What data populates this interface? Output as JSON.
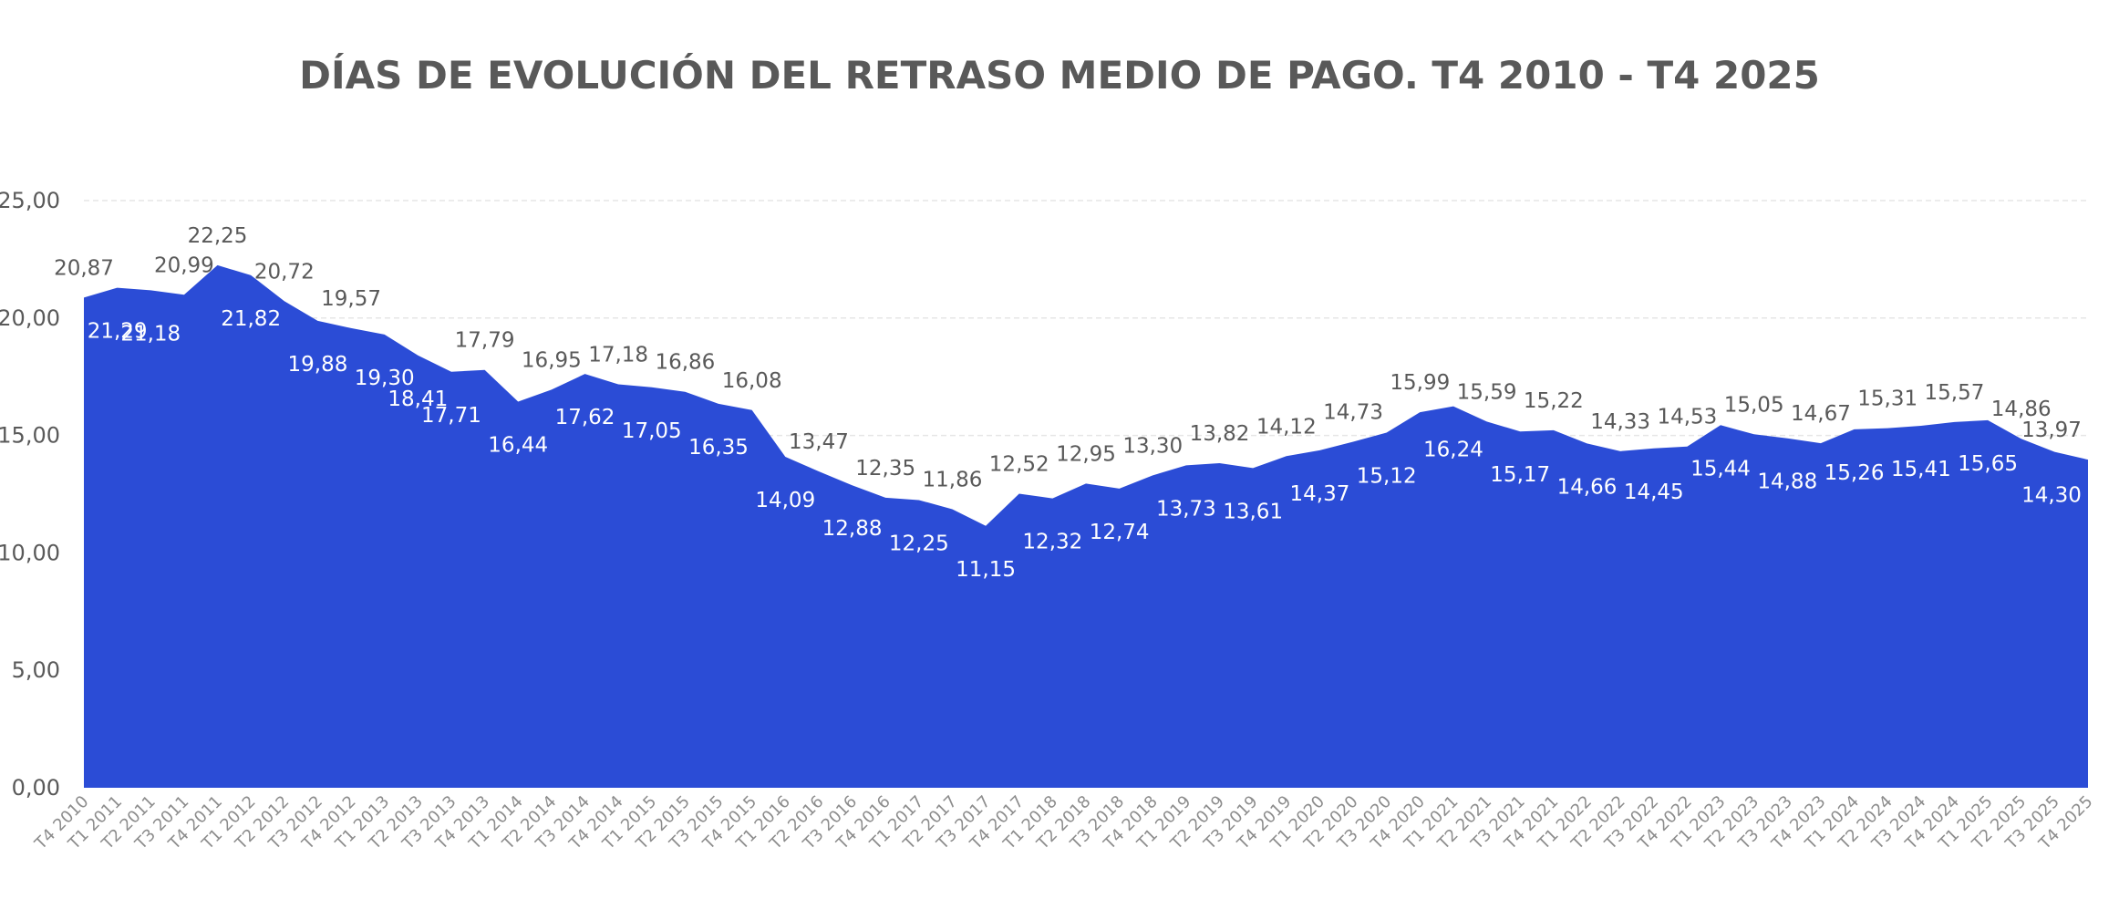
{
  "chart_data": {
    "type": "area",
    "title": "DÍAS DE EVOLUCIÓN DEL RETRASO MEDIO DE PAGO. T4 2010 - T4 2025",
    "xlabel": "",
    "ylabel": "",
    "ylim": [
      0,
      25
    ],
    "yticks": [
      "0,00",
      "5,00",
      "10,00",
      "15,00",
      "20,00",
      "25,00"
    ],
    "grid": true,
    "legend": "none",
    "colors": {
      "area": "#2b4cd6",
      "label_above": "#595959",
      "label_inside": "#ffffff",
      "title": "#595959"
    },
    "categories": [
      "T4 2010",
      "T1 2011",
      "T2 2011",
      "T3 2011",
      "T4 2011",
      "T1 2012",
      "T2 2012",
      "T3 2012",
      "T4 2012",
      "T1 2013",
      "T2 2013",
      "T3 2013",
      "T4 2013",
      "T1 2014",
      "T2 2014",
      "T3 2014",
      "T4 2014",
      "T1 2015",
      "T2 2015",
      "T3 2015",
      "T4 2015",
      "T1 2016",
      "T2 2016",
      "T3 2016",
      "T4 2016",
      "T1 2017",
      "T2 2017",
      "T3 2017",
      "T4 2017",
      "T1 2018",
      "T2 2018",
      "T3 2018",
      "T4 2018",
      "T1 2019",
      "T2 2019",
      "T3 2019",
      "T4 2019",
      "T1 2020",
      "T2 2020",
      "T3 2020",
      "T4 2020",
      "T1 2021",
      "T2 2021",
      "T3 2021",
      "T4 2021",
      "T1 2022",
      "T2 2022",
      "T3 2022",
      "T4 2022",
      "T1 2023",
      "T2 2023",
      "T3 2023",
      "T4 2023",
      "T1 2024",
      "T2 2024",
      "T3 2024",
      "T4 2024",
      "T1 2025",
      "T2 2025",
      "T3 2025",
      "T4 2025"
    ],
    "values": [
      20.87,
      21.29,
      21.18,
      20.99,
      22.25,
      21.82,
      20.72,
      19.88,
      19.57,
      19.3,
      18.41,
      17.71,
      17.79,
      16.44,
      16.95,
      17.62,
      17.18,
      17.05,
      16.86,
      16.35,
      16.08,
      14.09,
      13.47,
      12.88,
      12.35,
      12.25,
      11.86,
      11.15,
      12.52,
      12.32,
      12.95,
      12.74,
      13.3,
      13.73,
      13.82,
      13.61,
      14.12,
      14.37,
      14.73,
      15.12,
      15.99,
      16.24,
      15.59,
      15.17,
      15.22,
      14.66,
      14.33,
      14.45,
      14.53,
      15.44,
      15.05,
      14.88,
      14.67,
      15.26,
      15.31,
      15.41,
      15.57,
      15.65,
      14.86,
      14.3,
      13.97
    ],
    "labels": [
      "20,87",
      "21,29",
      "21,18",
      "20,99",
      "22,25",
      "21,82",
      "20,72",
      "19,88",
      "19,57",
      "19,30",
      "18,41",
      "17,71",
      "17,79",
      "16,44",
      "16,95",
      "17,62",
      "17,18",
      "17,05",
      "16,86",
      "16,35",
      "16,08",
      "14,09",
      "13,47",
      "12,88",
      "12,35",
      "12,25",
      "11,86",
      "11,15",
      "12,52",
      "12,32",
      "12,95",
      "12,74",
      "13,30",
      "13,73",
      "13,82",
      "13,61",
      "14,12",
      "14,37",
      "14,73",
      "15,12",
      "15,99",
      "16,24",
      "15,59",
      "15,17",
      "15,22",
      "14,66",
      "14,33",
      "14,45",
      "14,53",
      "15,44",
      "15,05",
      "14,88",
      "14,67",
      "15,26",
      "15,31",
      "15,41",
      "15,57",
      "15,65",
      "14,86",
      "14,30",
      "13,97"
    ],
    "label_inside": [
      false,
      true,
      true,
      false,
      false,
      true,
      false,
      true,
      false,
      true,
      true,
      true,
      false,
      true,
      false,
      true,
      false,
      true,
      false,
      true,
      false,
      true,
      false,
      true,
      false,
      true,
      false,
      true,
      false,
      true,
      false,
      true,
      false,
      true,
      false,
      true,
      false,
      true,
      false,
      true,
      false,
      true,
      false,
      true,
      false,
      true,
      false,
      true,
      false,
      true,
      false,
      true,
      false,
      true,
      false,
      true,
      false,
      true,
      false,
      true,
      false
    ]
  }
}
